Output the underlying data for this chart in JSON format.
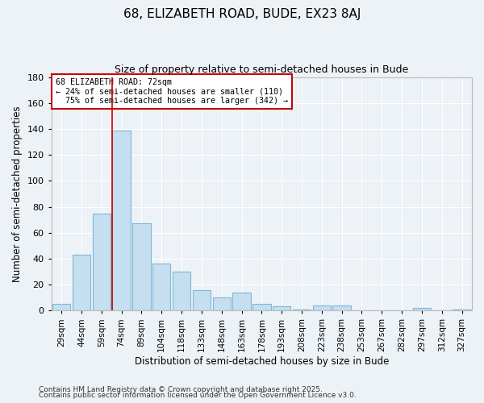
{
  "title": "68, ELIZABETH ROAD, BUDE, EX23 8AJ",
  "subtitle": "Size of property relative to semi-detached houses in Bude",
  "xlabel": "Distribution of semi-detached houses by size in Bude",
  "ylabel": "Number of semi-detached properties",
  "categories": [
    "29sqm",
    "44sqm",
    "59sqm",
    "74sqm",
    "89sqm",
    "104sqm",
    "118sqm",
    "133sqm",
    "148sqm",
    "163sqm",
    "178sqm",
    "193sqm",
    "208sqm",
    "223sqm",
    "238sqm",
    "253sqm",
    "267sqm",
    "282sqm",
    "297sqm",
    "312sqm",
    "327sqm"
  ],
  "values": [
    5,
    43,
    75,
    139,
    67,
    36,
    30,
    16,
    10,
    14,
    5,
    3,
    1,
    4,
    4,
    0,
    0,
    0,
    2,
    0,
    1
  ],
  "bar_color": "#c6dff0",
  "bar_edge_color": "#7ab8d9",
  "ylim": [
    0,
    180
  ],
  "yticks": [
    0,
    20,
    40,
    60,
    80,
    100,
    120,
    140,
    160,
    180
  ],
  "property_label": "68 ELIZABETH ROAD: 72sqm",
  "pct_smaller": 24,
  "pct_larger": 75,
  "n_smaller": 110,
  "n_larger": 342,
  "vline_bar_index": 3,
  "annotation_box_color": "#ffffff",
  "annotation_box_edge": "#cc0000",
  "vline_color": "#cc0000",
  "background_color": "#edf2f7",
  "grid_color": "#ffffff",
  "footer_line1": "Contains HM Land Registry data © Crown copyright and database right 2025.",
  "footer_line2": "Contains public sector information licensed under the Open Government Licence v3.0."
}
